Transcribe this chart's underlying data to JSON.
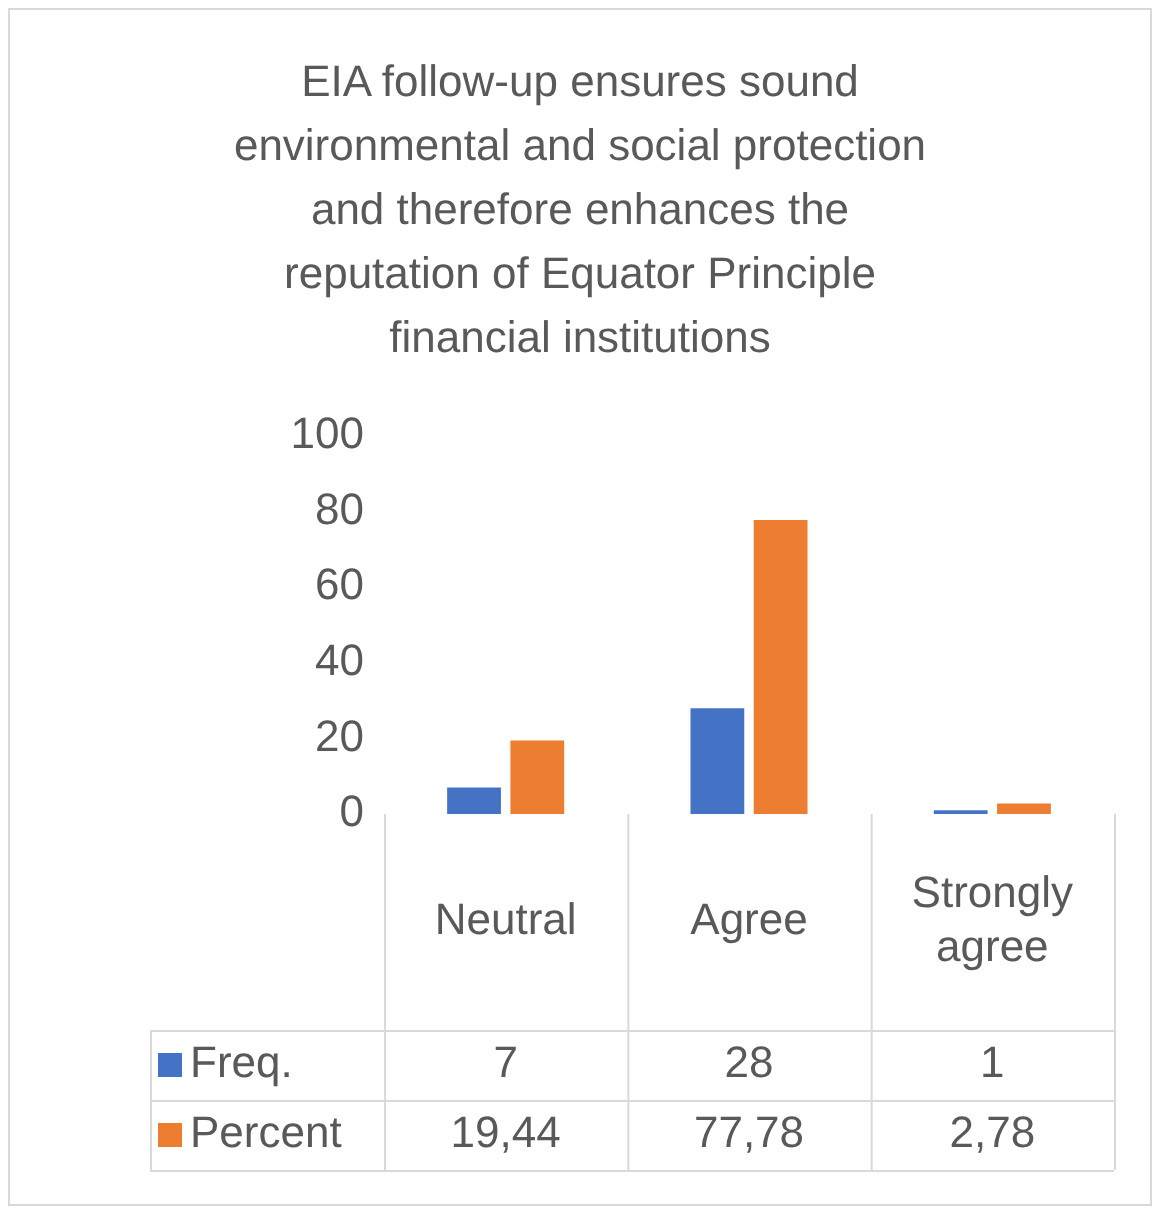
{
  "chart_data": {
    "type": "bar",
    "title": "EIA follow-up ensures sound environmental and social protection and therefore enhances the reputation of Equator Principle financial institutions",
    "categories": [
      "Neutral",
      "Agree",
      "Strongly agree"
    ],
    "series": [
      {
        "name": "Freq.",
        "color": "#4472c4",
        "values": [
          7,
          28,
          1
        ],
        "value_labels": [
          "7",
          "28",
          "1"
        ]
      },
      {
        "name": "Percent",
        "color": "#ed7d31",
        "values": [
          19.44,
          77.78,
          2.78
        ],
        "value_labels": [
          "19,44",
          "77,78",
          "2,78"
        ]
      }
    ],
    "ylim": [
      0,
      100
    ],
    "yticks": [
      0,
      20,
      40,
      60,
      80,
      100
    ],
    "grid": false,
    "legend": "bottom"
  }
}
